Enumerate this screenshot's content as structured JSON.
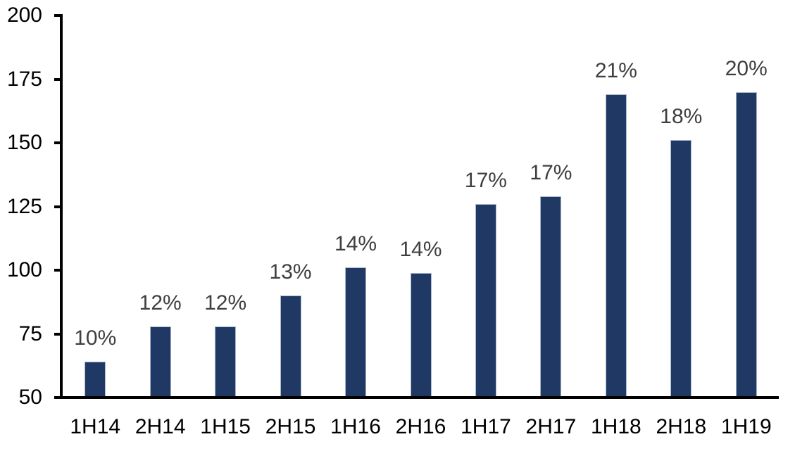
{
  "chart_data": {
    "type": "bar",
    "categories": [
      "1H14",
      "2H14",
      "1H15",
      "2H15",
      "1H16",
      "2H16",
      "1H17",
      "2H17",
      "1H18",
      "2H18",
      "1H19"
    ],
    "values": [
      64,
      78,
      78,
      90,
      101,
      99,
      126,
      129,
      169,
      151,
      170
    ],
    "data_labels": [
      "10%",
      "12%",
      "12%",
      "13%",
      "14%",
      "14%",
      "17%",
      "17%",
      "21%",
      "18%",
      "20%"
    ],
    "title": "",
    "xlabel": "",
    "ylabel": "",
    "ylim": [
      50,
      200
    ],
    "yticks": [
      50,
      75,
      100,
      125,
      150,
      175,
      200
    ],
    "grid": false,
    "legend_position": "none",
    "data_label_position": "outside-end",
    "colors": {
      "bar_fill": "#203864",
      "bar_border": "#A9B7CC",
      "data_label_text": "#3F3F3F",
      "axis_text": "#000000",
      "axis_line": "#000000",
      "background": "#FFFFFF"
    }
  }
}
